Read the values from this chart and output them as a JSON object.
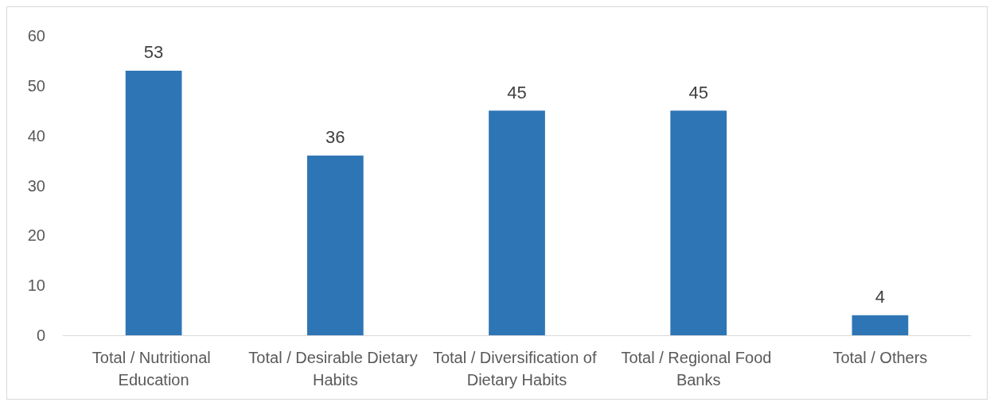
{
  "chart_data": {
    "type": "bar",
    "categories": [
      "Total / Nutritional Education",
      "Total / Desirable Dietary Habits",
      "Total / Diversification of Dietary Habits",
      "Total / Regional Food Banks",
      "Total / Others"
    ],
    "values": [
      53,
      36,
      45,
      45,
      4
    ],
    "color": "#2e75b6",
    "ylim": [
      0,
      60
    ],
    "yticks": [
      0,
      10,
      20,
      30,
      40,
      50,
      60
    ],
    "grid": false,
    "data_labels": true
  }
}
